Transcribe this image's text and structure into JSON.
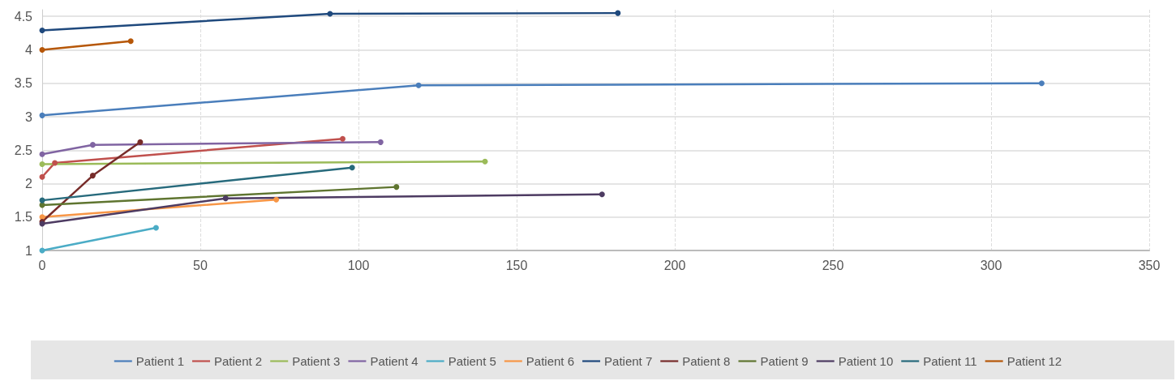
{
  "chart_data": {
    "type": "line",
    "xlim": [
      0,
      350
    ],
    "xticks": [
      0,
      50,
      100,
      150,
      200,
      250,
      300,
      350
    ],
    "ylim": [
      1,
      4.6
    ],
    "yticks": [
      1,
      1.5,
      2,
      2.5,
      3,
      3.5,
      4,
      4.5
    ],
    "grid": true,
    "legend": "bottom",
    "marker": "circle",
    "line_style": "solid",
    "series": [
      {
        "name": "Patient 1",
        "color": "#4a7ebb",
        "x": [
          0,
          119,
          316
        ],
        "values": [
          3.02,
          3.47,
          3.5
        ]
      },
      {
        "name": "Patient 2",
        "color": "#c0504d",
        "x": [
          0,
          4,
          95
        ],
        "values": [
          2.1,
          2.31,
          2.67
        ]
      },
      {
        "name": "Patient 3",
        "color": "#9bbb59",
        "x": [
          0,
          140
        ],
        "values": [
          2.29,
          2.33
        ]
      },
      {
        "name": "Patient 4",
        "color": "#8064a2",
        "x": [
          0,
          16,
          107
        ],
        "values": [
          2.44,
          2.58,
          2.62
        ]
      },
      {
        "name": "Patient 5",
        "color": "#4bacc6",
        "x": [
          0,
          36
        ],
        "values": [
          1.0,
          1.34
        ]
      },
      {
        "name": "Patient 6",
        "color": "#f79646",
        "x": [
          0,
          74
        ],
        "values": [
          1.5,
          1.76
        ]
      },
      {
        "name": "Patient 7",
        "color": "#1f497d",
        "x": [
          0,
          91,
          182
        ],
        "values": [
          4.29,
          4.54,
          4.55
        ]
      },
      {
        "name": "Patient 8",
        "color": "#772c2a",
        "x": [
          0,
          16,
          31
        ],
        "values": [
          1.43,
          2.12,
          2.62
        ]
      },
      {
        "name": "Patient 9",
        "color": "#5f7530",
        "x": [
          0,
          112
        ],
        "values": [
          1.68,
          1.95
        ]
      },
      {
        "name": "Patient 10",
        "color": "#4d3b62",
        "x": [
          0,
          58,
          177
        ],
        "values": [
          1.4,
          1.78,
          1.84
        ]
      },
      {
        "name": "Patient 11",
        "color": "#276a7c",
        "x": [
          0,
          98
        ],
        "values": [
          1.75,
          2.24
        ]
      },
      {
        "name": "Patient 12",
        "color": "#b65708",
        "x": [
          0,
          28
        ],
        "values": [
          4.0,
          4.13
        ]
      }
    ]
  }
}
